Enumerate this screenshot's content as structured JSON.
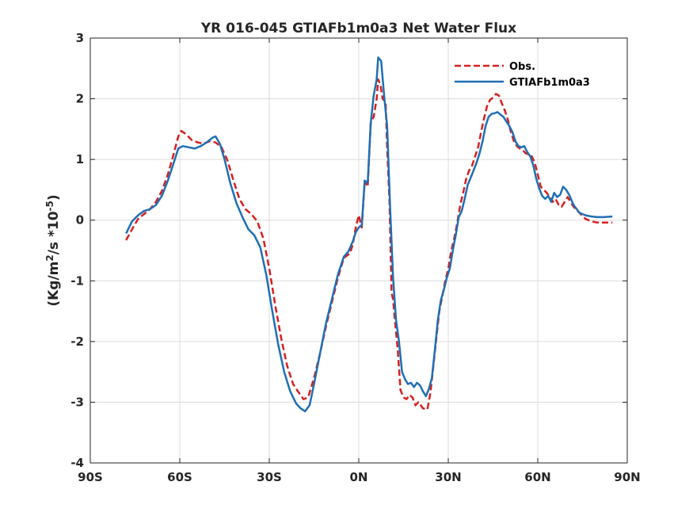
{
  "chart_data": {
    "type": "line",
    "title": "YR 016-045 GTIAFb1m0a3  Net Water Flux",
    "ylabel_main": "(Kg/m",
    "ylabel_sup1": "2",
    "ylabel_mid": "/s *10",
    "ylabel_sup2": "-5",
    "ylabel_end": ")",
    "xlim": [
      -90,
      90
    ],
    "ylim": [
      -4,
      3
    ],
    "x_ticks": [
      -90,
      -60,
      -30,
      0,
      30,
      60,
      90
    ],
    "x_tick_labels": [
      "90S",
      "60S",
      "30S",
      "0N",
      "30N",
      "60N",
      "90N"
    ],
    "y_ticks": [
      -4,
      -3,
      -2,
      -1,
      0,
      1,
      2,
      3
    ],
    "y_tick_labels": [
      "-4",
      "-3",
      "-2",
      "-1",
      "0",
      "1",
      "2",
      "3"
    ],
    "grid": true,
    "legend_position": "top-right",
    "series": [
      {
        "name": "Obs.",
        "color": "#d62020",
        "style": "dashed",
        "points": [
          [
            -78,
            -0.33
          ],
          [
            -76,
            -0.15
          ],
          [
            -74,
            0.02
          ],
          [
            -72,
            0.1
          ],
          [
            -70,
            0.18
          ],
          [
            -68,
            0.3
          ],
          [
            -66,
            0.48
          ],
          [
            -64,
            0.75
          ],
          [
            -62,
            1.1
          ],
          [
            -60.5,
            1.38
          ],
          [
            -59.5,
            1.47
          ],
          [
            -58,
            1.42
          ],
          [
            -56,
            1.32
          ],
          [
            -54,
            1.28
          ],
          [
            -52,
            1.26
          ],
          [
            -50,
            1.3
          ],
          [
            -48,
            1.28
          ],
          [
            -46,
            1.2
          ],
          [
            -44,
            0.98
          ],
          [
            -42,
            0.65
          ],
          [
            -40,
            0.35
          ],
          [
            -38,
            0.18
          ],
          [
            -36,
            0.1
          ],
          [
            -34,
            -0.02
          ],
          [
            -32,
            -0.3
          ],
          [
            -30,
            -0.8
          ],
          [
            -28,
            -1.4
          ],
          [
            -26,
            -1.95
          ],
          [
            -24,
            -2.4
          ],
          [
            -22,
            -2.7
          ],
          [
            -20,
            -2.85
          ],
          [
            -18.5,
            -2.95
          ],
          [
            -17,
            -2.92
          ],
          [
            -15,
            -2.6
          ],
          [
            -13,
            -2.2
          ],
          [
            -11,
            -1.75
          ],
          [
            -9,
            -1.35
          ],
          [
            -7,
            -0.95
          ],
          [
            -5,
            -0.62
          ],
          [
            -3,
            -0.55
          ],
          [
            -2,
            -0.4
          ],
          [
            -1,
            -0.12
          ],
          [
            0,
            0.08
          ],
          [
            1,
            -0.12
          ],
          [
            2,
            0.65
          ],
          [
            3,
            0.55
          ],
          [
            4,
            1.6
          ],
          [
            5,
            1.7
          ],
          [
            6,
            2.0
          ],
          [
            6.5,
            2.32
          ],
          [
            7.3,
            2.22
          ],
          [
            8,
            2.0
          ],
          [
            9,
            1.95
          ],
          [
            9.5,
            1.2
          ],
          [
            10.3,
            0.3
          ],
          [
            11,
            -1.2
          ],
          [
            11.5,
            -1.3
          ],
          [
            12,
            -1.6
          ],
          [
            13,
            -2.1
          ],
          [
            14,
            -2.8
          ],
          [
            15,
            -2.92
          ],
          [
            16,
            -2.95
          ],
          [
            17,
            -2.88
          ],
          [
            18,
            -2.92
          ],
          [
            19,
            -3.05
          ],
          [
            20,
            -3.0
          ],
          [
            21.5,
            -3.1
          ],
          [
            23,
            -3.12
          ],
          [
            24,
            -2.85
          ],
          [
            25,
            -2.4
          ],
          [
            26,
            -1.95
          ],
          [
            27,
            -1.5
          ],
          [
            28,
            -1.25
          ],
          [
            29,
            -1.0
          ],
          [
            30,
            -0.8
          ],
          [
            31,
            -0.5
          ],
          [
            32,
            -0.3
          ],
          [
            33,
            -0.05
          ],
          [
            34,
            0.25
          ],
          [
            35,
            0.45
          ],
          [
            36,
            0.68
          ],
          [
            37,
            0.82
          ],
          [
            38,
            0.9
          ],
          [
            39,
            1.05
          ],
          [
            40,
            1.2
          ],
          [
            41,
            1.45
          ],
          [
            42,
            1.68
          ],
          [
            43,
            1.88
          ],
          [
            44,
            1.98
          ],
          [
            45,
            2.02
          ],
          [
            46,
            2.08
          ],
          [
            47,
            2.05
          ],
          [
            48,
            1.92
          ],
          [
            49,
            1.8
          ],
          [
            50,
            1.65
          ],
          [
            51,
            1.45
          ],
          [
            52,
            1.3
          ],
          [
            53,
            1.22
          ],
          [
            54,
            1.18
          ],
          [
            55,
            1.15
          ],
          [
            56,
            1.1
          ],
          [
            57,
            1.08
          ],
          [
            58,
            1.05
          ],
          [
            59,
            0.95
          ],
          [
            60,
            0.75
          ],
          [
            61,
            0.55
          ],
          [
            62,
            0.5
          ],
          [
            63,
            0.45
          ],
          [
            64,
            0.38
          ],
          [
            65,
            0.3
          ],
          [
            66,
            0.35
          ],
          [
            67,
            0.25
          ],
          [
            68,
            0.22
          ],
          [
            69,
            0.3
          ],
          [
            70,
            0.38
          ],
          [
            72,
            0.22
          ],
          [
            74,
            0.12
          ],
          [
            76,
            0.02
          ],
          [
            78,
            -0.02
          ],
          [
            80,
            -0.04
          ],
          [
            82,
            -0.04
          ],
          [
            85,
            -0.04
          ]
        ]
      },
      {
        "name": "GTIAFb1m0a3",
        "color": "#1f6fb4",
        "style": "solid",
        "points": [
          [
            -78,
            -0.22
          ],
          [
            -76,
            -0.02
          ],
          [
            -74,
            0.08
          ],
          [
            -72,
            0.15
          ],
          [
            -70,
            0.18
          ],
          [
            -68,
            0.25
          ],
          [
            -66,
            0.4
          ],
          [
            -64,
            0.65
          ],
          [
            -62,
            0.95
          ],
          [
            -60.5,
            1.18
          ],
          [
            -59,
            1.22
          ],
          [
            -57,
            1.2
          ],
          [
            -55,
            1.18
          ],
          [
            -53,
            1.22
          ],
          [
            -51,
            1.28
          ],
          [
            -49,
            1.36
          ],
          [
            -48,
            1.38
          ],
          [
            -46.5,
            1.25
          ],
          [
            -45,
            1.0
          ],
          [
            -43,
            0.6
          ],
          [
            -41,
            0.28
          ],
          [
            -39,
            0.05
          ],
          [
            -37,
            -0.15
          ],
          [
            -35,
            -0.25
          ],
          [
            -33,
            -0.45
          ],
          [
            -31,
            -0.9
          ],
          [
            -29,
            -1.5
          ],
          [
            -27,
            -2.05
          ],
          [
            -25,
            -2.5
          ],
          [
            -23,
            -2.82
          ],
          [
            -21,
            -3.02
          ],
          [
            -19.5,
            -3.1
          ],
          [
            -18,
            -3.15
          ],
          [
            -16.5,
            -3.05
          ],
          [
            -15,
            -2.7
          ],
          [
            -13,
            -2.2
          ],
          [
            -11,
            -1.7
          ],
          [
            -9,
            -1.3
          ],
          [
            -7,
            -0.9
          ],
          [
            -5,
            -0.6
          ],
          [
            -3.5,
            -0.52
          ],
          [
            -2,
            -0.35
          ],
          [
            -1,
            -0.2
          ],
          [
            0,
            -0.12
          ],
          [
            1,
            -0.08
          ],
          [
            2,
            0.65
          ],
          [
            3,
            0.62
          ],
          [
            4,
            1.6
          ],
          [
            5,
            2.05
          ],
          [
            6,
            2.32
          ],
          [
            6.5,
            2.68
          ],
          [
            7.5,
            2.62
          ],
          [
            8.5,
            2.05
          ],
          [
            9.5,
            1.55
          ],
          [
            10.5,
            0.2
          ],
          [
            11.5,
            -0.95
          ],
          [
            12.5,
            -1.65
          ],
          [
            13.5,
            -2.0
          ],
          [
            14.5,
            -2.5
          ],
          [
            15.5,
            -2.62
          ],
          [
            16.5,
            -2.7
          ],
          [
            17.5,
            -2.68
          ],
          [
            18.5,
            -2.75
          ],
          [
            19.5,
            -2.68
          ],
          [
            20.5,
            -2.72
          ],
          [
            21.5,
            -2.82
          ],
          [
            22.5,
            -2.9
          ],
          [
            23.5,
            -2.78
          ],
          [
            24.5,
            -2.6
          ],
          [
            25.5,
            -2.15
          ],
          [
            26.5,
            -1.65
          ],
          [
            27.5,
            -1.32
          ],
          [
            28.5,
            -1.15
          ],
          [
            29.5,
            -0.95
          ],
          [
            30.5,
            -0.8
          ],
          [
            31.5,
            -0.5
          ],
          [
            32.5,
            -0.25
          ],
          [
            33.5,
            0.05
          ],
          [
            34.5,
            0.15
          ],
          [
            35.5,
            0.35
          ],
          [
            36.5,
            0.58
          ],
          [
            37.5,
            0.7
          ],
          [
            38.5,
            0.82
          ],
          [
            39.5,
            0.95
          ],
          [
            40.5,
            1.1
          ],
          [
            41.5,
            1.3
          ],
          [
            42.5,
            1.55
          ],
          [
            43.5,
            1.7
          ],
          [
            44.5,
            1.75
          ],
          [
            45.5,
            1.76
          ],
          [
            46.5,
            1.78
          ],
          [
            47.5,
            1.74
          ],
          [
            48.5,
            1.7
          ],
          [
            49.5,
            1.62
          ],
          [
            50.5,
            1.55
          ],
          [
            51.5,
            1.45
          ],
          [
            52.5,
            1.3
          ],
          [
            53.5,
            1.22
          ],
          [
            54.5,
            1.2
          ],
          [
            55.5,
            1.22
          ],
          [
            56.5,
            1.12
          ],
          [
            57.5,
            1.05
          ],
          [
            58.5,
            0.9
          ],
          [
            59.5,
            0.68
          ],
          [
            60.5,
            0.52
          ],
          [
            61.5,
            0.4
          ],
          [
            62.5,
            0.35
          ],
          [
            63.5,
            0.4
          ],
          [
            64.5,
            0.3
          ],
          [
            65.5,
            0.45
          ],
          [
            66.5,
            0.38
          ],
          [
            67.5,
            0.42
          ],
          [
            68.5,
            0.55
          ],
          [
            69.5,
            0.5
          ],
          [
            70.5,
            0.42
          ],
          [
            72,
            0.25
          ],
          [
            74,
            0.12
          ],
          [
            76,
            0.08
          ],
          [
            78,
            0.06
          ],
          [
            80,
            0.05
          ],
          [
            82,
            0.05
          ],
          [
            85,
            0.06
          ]
        ]
      }
    ]
  }
}
